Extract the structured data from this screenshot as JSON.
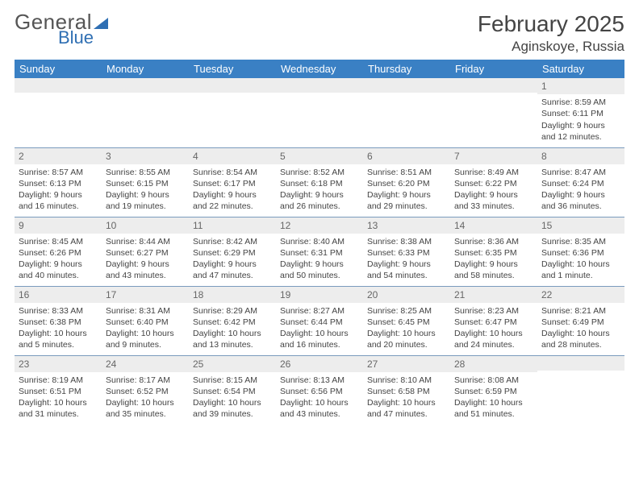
{
  "brand": {
    "line1": "General",
    "line2": "Blue"
  },
  "title": "February 2025",
  "location": "Aginskoye, Russia",
  "columns": [
    "Sunday",
    "Monday",
    "Tuesday",
    "Wednesday",
    "Thursday",
    "Friday",
    "Saturday"
  ],
  "colors": {
    "header_bg": "#3a80c4",
    "row_border": "#7a9bbd",
    "daynum_bg": "#ededed",
    "brand_blue": "#2f6fb3"
  },
  "weeks": [
    [
      {
        "n": "",
        "sr": "",
        "ss": "",
        "dl": ""
      },
      {
        "n": "",
        "sr": "",
        "ss": "",
        "dl": ""
      },
      {
        "n": "",
        "sr": "",
        "ss": "",
        "dl": ""
      },
      {
        "n": "",
        "sr": "",
        "ss": "",
        "dl": ""
      },
      {
        "n": "",
        "sr": "",
        "ss": "",
        "dl": ""
      },
      {
        "n": "",
        "sr": "",
        "ss": "",
        "dl": ""
      },
      {
        "n": "1",
        "sr": "Sunrise: 8:59 AM",
        "ss": "Sunset: 6:11 PM",
        "dl": "Daylight: 9 hours and 12 minutes."
      }
    ],
    [
      {
        "n": "2",
        "sr": "Sunrise: 8:57 AM",
        "ss": "Sunset: 6:13 PM",
        "dl": "Daylight: 9 hours and 16 minutes."
      },
      {
        "n": "3",
        "sr": "Sunrise: 8:55 AM",
        "ss": "Sunset: 6:15 PM",
        "dl": "Daylight: 9 hours and 19 minutes."
      },
      {
        "n": "4",
        "sr": "Sunrise: 8:54 AM",
        "ss": "Sunset: 6:17 PM",
        "dl": "Daylight: 9 hours and 22 minutes."
      },
      {
        "n": "5",
        "sr": "Sunrise: 8:52 AM",
        "ss": "Sunset: 6:18 PM",
        "dl": "Daylight: 9 hours and 26 minutes."
      },
      {
        "n": "6",
        "sr": "Sunrise: 8:51 AM",
        "ss": "Sunset: 6:20 PM",
        "dl": "Daylight: 9 hours and 29 minutes."
      },
      {
        "n": "7",
        "sr": "Sunrise: 8:49 AM",
        "ss": "Sunset: 6:22 PM",
        "dl": "Daylight: 9 hours and 33 minutes."
      },
      {
        "n": "8",
        "sr": "Sunrise: 8:47 AM",
        "ss": "Sunset: 6:24 PM",
        "dl": "Daylight: 9 hours and 36 minutes."
      }
    ],
    [
      {
        "n": "9",
        "sr": "Sunrise: 8:45 AM",
        "ss": "Sunset: 6:26 PM",
        "dl": "Daylight: 9 hours and 40 minutes."
      },
      {
        "n": "10",
        "sr": "Sunrise: 8:44 AM",
        "ss": "Sunset: 6:27 PM",
        "dl": "Daylight: 9 hours and 43 minutes."
      },
      {
        "n": "11",
        "sr": "Sunrise: 8:42 AM",
        "ss": "Sunset: 6:29 PM",
        "dl": "Daylight: 9 hours and 47 minutes."
      },
      {
        "n": "12",
        "sr": "Sunrise: 8:40 AM",
        "ss": "Sunset: 6:31 PM",
        "dl": "Daylight: 9 hours and 50 minutes."
      },
      {
        "n": "13",
        "sr": "Sunrise: 8:38 AM",
        "ss": "Sunset: 6:33 PM",
        "dl": "Daylight: 9 hours and 54 minutes."
      },
      {
        "n": "14",
        "sr": "Sunrise: 8:36 AM",
        "ss": "Sunset: 6:35 PM",
        "dl": "Daylight: 9 hours and 58 minutes."
      },
      {
        "n": "15",
        "sr": "Sunrise: 8:35 AM",
        "ss": "Sunset: 6:36 PM",
        "dl": "Daylight: 10 hours and 1 minute."
      }
    ],
    [
      {
        "n": "16",
        "sr": "Sunrise: 8:33 AM",
        "ss": "Sunset: 6:38 PM",
        "dl": "Daylight: 10 hours and 5 minutes."
      },
      {
        "n": "17",
        "sr": "Sunrise: 8:31 AM",
        "ss": "Sunset: 6:40 PM",
        "dl": "Daylight: 10 hours and 9 minutes."
      },
      {
        "n": "18",
        "sr": "Sunrise: 8:29 AM",
        "ss": "Sunset: 6:42 PM",
        "dl": "Daylight: 10 hours and 13 minutes."
      },
      {
        "n": "19",
        "sr": "Sunrise: 8:27 AM",
        "ss": "Sunset: 6:44 PM",
        "dl": "Daylight: 10 hours and 16 minutes."
      },
      {
        "n": "20",
        "sr": "Sunrise: 8:25 AM",
        "ss": "Sunset: 6:45 PM",
        "dl": "Daylight: 10 hours and 20 minutes."
      },
      {
        "n": "21",
        "sr": "Sunrise: 8:23 AM",
        "ss": "Sunset: 6:47 PM",
        "dl": "Daylight: 10 hours and 24 minutes."
      },
      {
        "n": "22",
        "sr": "Sunrise: 8:21 AM",
        "ss": "Sunset: 6:49 PM",
        "dl": "Daylight: 10 hours and 28 minutes."
      }
    ],
    [
      {
        "n": "23",
        "sr": "Sunrise: 8:19 AM",
        "ss": "Sunset: 6:51 PM",
        "dl": "Daylight: 10 hours and 31 minutes."
      },
      {
        "n": "24",
        "sr": "Sunrise: 8:17 AM",
        "ss": "Sunset: 6:52 PM",
        "dl": "Daylight: 10 hours and 35 minutes."
      },
      {
        "n": "25",
        "sr": "Sunrise: 8:15 AM",
        "ss": "Sunset: 6:54 PM",
        "dl": "Daylight: 10 hours and 39 minutes."
      },
      {
        "n": "26",
        "sr": "Sunrise: 8:13 AM",
        "ss": "Sunset: 6:56 PM",
        "dl": "Daylight: 10 hours and 43 minutes."
      },
      {
        "n": "27",
        "sr": "Sunrise: 8:10 AM",
        "ss": "Sunset: 6:58 PM",
        "dl": "Daylight: 10 hours and 47 minutes."
      },
      {
        "n": "28",
        "sr": "Sunrise: 8:08 AM",
        "ss": "Sunset: 6:59 PM",
        "dl": "Daylight: 10 hours and 51 minutes."
      },
      {
        "n": "",
        "sr": "",
        "ss": "",
        "dl": ""
      }
    ]
  ]
}
